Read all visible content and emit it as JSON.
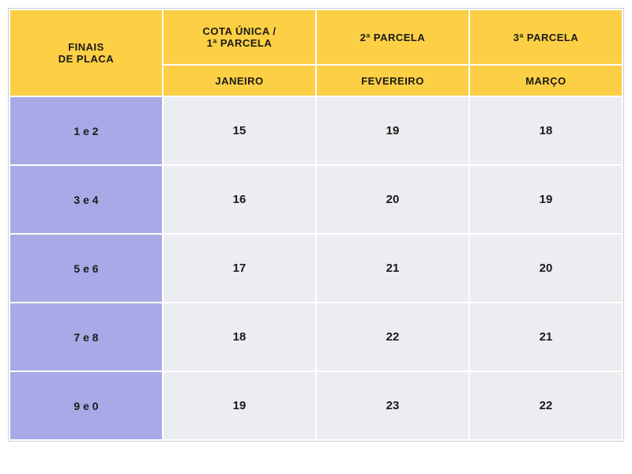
{
  "table": {
    "type": "table",
    "colors": {
      "header_bg": "#fccf45",
      "row_header_bg": "#a7aae6",
      "data_cell_bg": "#ebedf0",
      "border_color": "#ffffff",
      "text_color": "#1a1a1a",
      "page_bg": "#ffffff"
    },
    "header_row_1": {
      "corner": "FINAIS DE PLACA",
      "col1": "COTA ÚNICA / 1ª PARCELA",
      "col2": "2ª PARCELA",
      "col3": "3ª PARCELA"
    },
    "header_row_2": {
      "col1": "JANEIRO",
      "col2": "FEVEREIRO",
      "col3": "MARÇO"
    },
    "rows": [
      {
        "label": "1 e 2",
        "c1": "15",
        "c2": "19",
        "c3": "18"
      },
      {
        "label": "3 e 4",
        "c1": "16",
        "c2": "20",
        "c3": "19"
      },
      {
        "label": "5 e 6",
        "c1": "17",
        "c2": "21",
        "c3": "20"
      },
      {
        "label": "7 e 8",
        "c1": "18",
        "c2": "22",
        "c3": "21"
      },
      {
        "label": "9 e 0",
        "c1": "19",
        "c2": "23",
        "c3": "22"
      }
    ],
    "typography": {
      "header_fontsize": 13,
      "row_header_fontsize": 14,
      "data_fontsize": 15,
      "font_weight": "bold",
      "font_family": "Arial"
    },
    "layout": {
      "row_height_header1": 70,
      "row_height_header2": 40,
      "row_height_body": 87,
      "border_width": 2,
      "col_widths": [
        "25%",
        "25%",
        "25%",
        "25%"
      ]
    }
  }
}
